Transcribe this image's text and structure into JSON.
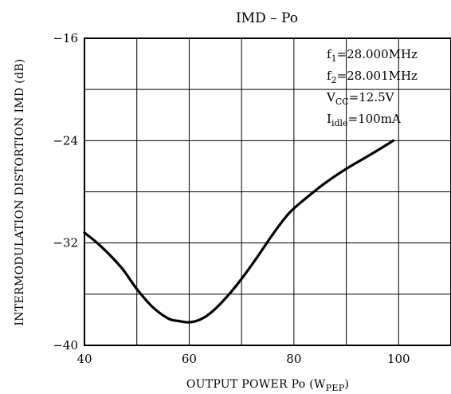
{
  "chart_data": {
    "type": "line",
    "title": "IMD – Po",
    "xlabel": {
      "main": "OUTPUT POWER  Po  (W",
      "sub": "PEP",
      "close": ")"
    },
    "ylabel": "INTERMODULATION DISTORTION   IMD  (dB)",
    "xlim": [
      40,
      110
    ],
    "ylim": [
      -40,
      -16
    ],
    "x_ticks": [
      40,
      60,
      80,
      100
    ],
    "y_ticks": [
      -16,
      -24,
      -32,
      -40
    ],
    "x_grid": [
      40,
      50,
      60,
      70,
      80,
      90,
      100,
      110
    ],
    "y_grid": [
      -16,
      -20,
      -24,
      -28,
      -32,
      -36,
      -40
    ],
    "grid": true,
    "annotations": [
      {
        "main": "f",
        "sub": "1",
        "rest": "=28.000MHz"
      },
      {
        "main": "f",
        "sub": "2",
        "rest": "=28.001MHz"
      },
      {
        "main": "V",
        "sub": "CC",
        "rest": "=12.5V"
      },
      {
        "main": "I",
        "sub": "idle",
        "rest": "=100mA"
      }
    ],
    "series": [
      {
        "x": [
          40,
          43,
          47,
          50,
          53,
          56,
          58,
          60,
          62,
          64,
          67,
          70,
          73,
          76,
          79,
          82,
          86,
          90,
          95,
          99
        ],
        "y": [
          -31.2,
          -32.2,
          -33.9,
          -35.6,
          -37.0,
          -37.9,
          -38.1,
          -38.2,
          -38.0,
          -37.5,
          -36.3,
          -34.8,
          -33.1,
          -31.3,
          -29.7,
          -28.6,
          -27.3,
          -26.2,
          -25.0,
          -24.0
        ]
      }
    ]
  }
}
